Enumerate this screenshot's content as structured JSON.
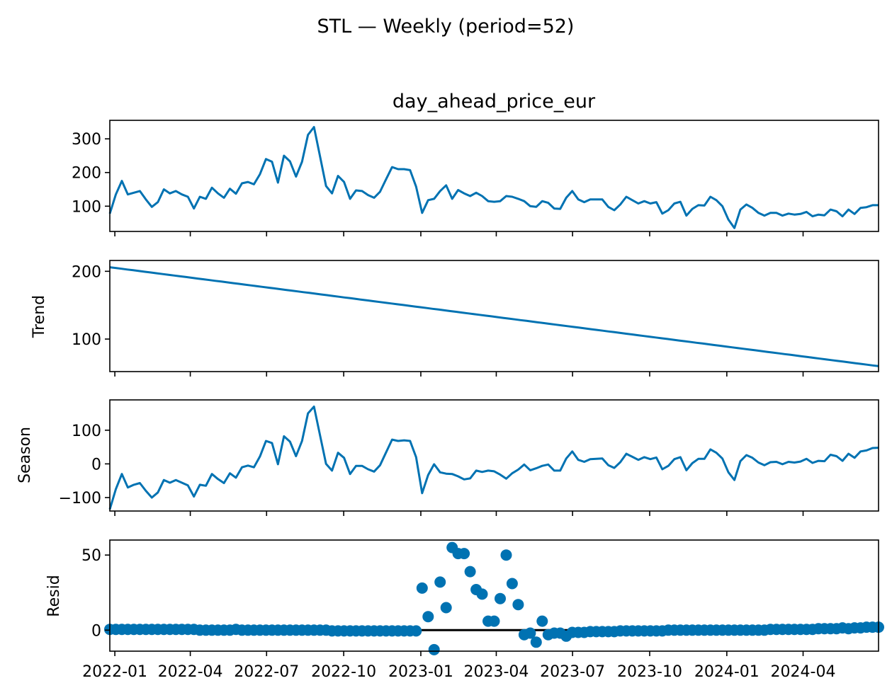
{
  "figure": {
    "suptitle": "STL — Weekly (period=52)"
  },
  "chart_data": [
    {
      "type": "line",
      "title": "day_ahead_price_eur",
      "ylabel": "",
      "x_start": "2021-12-26",
      "x_step_days": 7,
      "x_ticks": [
        "2022-01",
        "2022-04",
        "2022-07",
        "2022-10",
        "2023-01",
        "2023-04",
        "2023-07",
        "2023-10",
        "2024-01",
        "2024-04"
      ],
      "x_tick_dates": [
        "2022-01-01",
        "2022-04-01",
        "2022-07-01",
        "2022-10-01",
        "2023-01-01",
        "2023-04-01",
        "2023-07-01",
        "2023-10-01",
        "2024-01-01",
        "2024-04-01"
      ],
      "xlim": [
        "2021-12-26",
        "2024-06-30"
      ],
      "yticks": [
        100,
        200,
        300
      ],
      "ylim": [
        25,
        355
      ],
      "grid": false,
      "values": [
        78,
        135,
        175,
        135,
        140,
        145,
        120,
        98,
        112,
        150,
        138,
        145,
        135,
        128,
        93,
        128,
        122,
        155,
        138,
        125,
        152,
        137,
        168,
        172,
        165,
        195,
        240,
        232,
        170,
        250,
        233,
        188,
        232,
        312,
        335,
        248,
        160,
        138,
        190,
        172,
        122,
        147,
        145,
        133,
        125,
        143,
        180,
        216,
        210,
        210,
        207,
        158,
        80,
        118,
        122,
        145,
        162,
        122,
        148,
        138,
        130,
        140,
        130,
        115,
        113,
        115,
        130,
        128,
        122,
        115,
        100,
        98,
        115,
        110,
        93,
        92,
        125,
        145,
        120,
        112,
        120,
        120,
        120,
        98,
        88,
        105,
        128,
        118,
        108,
        115,
        108,
        112,
        78,
        88,
        108,
        113,
        72,
        92,
        103,
        102,
        128,
        118,
        100,
        60,
        35,
        90,
        105,
        95,
        80,
        72,
        80,
        80,
        72,
        78,
        75,
        77,
        83,
        70,
        75,
        73,
        90,
        85,
        70,
        90,
        77,
        95,
        97,
        103,
        103
      ]
    },
    {
      "type": "line",
      "title": "",
      "ylabel": "Trend",
      "x_start": "2021-12-26",
      "x_step_days": 7,
      "xlim": [
        "2021-12-26",
        "2024-06-30"
      ],
      "yticks": [
        100,
        200
      ],
      "ylim": [
        52,
        216
      ],
      "values_linear": {
        "start": 206,
        "end": 60
      }
    },
    {
      "type": "line",
      "title": "",
      "ylabel": "Season",
      "x_start": "2021-12-26",
      "x_step_days": 7,
      "xlim": [
        "2021-12-26",
        "2024-06-30"
      ],
      "yticks": [
        -100,
        0,
        100
      ],
      "yticklabels": [
        "−100",
        "0",
        "100"
      ],
      "ylim": [
        -140,
        190
      ],
      "values": [
        -135,
        -75,
        -30,
        -70,
        -62,
        -57,
        -80,
        -100,
        -85,
        -48,
        -56,
        -48,
        -56,
        -64,
        -97,
        -62,
        -65,
        -30,
        -45,
        -57,
        -28,
        -41,
        -10,
        -5,
        -10,
        22,
        68,
        62,
        -1,
        82,
        66,
        23,
        68,
        150,
        170,
        85,
        0,
        -20,
        33,
        18,
        -30,
        -6,
        -6,
        -16,
        -23,
        -4,
        34,
        72,
        68,
        70,
        68,
        20,
        -87,
        -33,
        -1,
        -25,
        -29,
        -30,
        -37,
        -46,
        -43,
        -20,
        -24,
        -20,
        -22,
        -32,
        -44,
        -28,
        -17,
        -2,
        -19,
        -13,
        -6,
        -2,
        -20,
        -20,
        16,
        37,
        12,
        6,
        14,
        15,
        16,
        -4,
        -12,
        5,
        30,
        21,
        12,
        20,
        14,
        19,
        -16,
        -6,
        14,
        20,
        -19,
        2,
        15,
        15,
        43,
        33,
        16,
        -25,
        -48,
        8,
        26,
        18,
        4,
        -4,
        5,
        6,
        -1,
        6,
        4,
        7,
        15,
        3,
        9,
        8,
        27,
        23,
        9,
        30,
        18,
        37,
        40,
        47,
        48
      ]
    },
    {
      "type": "scatter",
      "title": "",
      "ylabel": "Resid",
      "x_start": "2021-12-26",
      "x_step_days": 7,
      "xlim": [
        "2021-12-26",
        "2024-06-30"
      ],
      "yticks": [
        0,
        50
      ],
      "ylim": [
        -14,
        60
      ],
      "zero_line": true,
      "values": [
        0.5,
        0.5,
        0.5,
        0.5,
        0.5,
        0.5,
        0.5,
        0.5,
        0.5,
        0.5,
        0.5,
        0.5,
        0.5,
        0.5,
        0.5,
        0,
        0,
        0,
        0,
        0,
        0,
        0.5,
        0,
        0,
        0,
        0,
        0,
        0,
        0,
        0,
        0,
        0,
        0,
        0,
        0,
        0,
        0,
        -0.5,
        -0.5,
        -0.5,
        -0.5,
        -0.5,
        -0.5,
        -0.5,
        -0.5,
        -0.5,
        -0.5,
        -0.5,
        -0.5,
        -0.5,
        -0.5,
        -0.5,
        28,
        9,
        -13,
        32,
        15,
        55,
        51,
        51,
        39,
        27,
        24,
        6,
        6,
        21,
        50,
        31,
        17,
        -3,
        -2,
        -8,
        6,
        -3,
        -2,
        -2,
        -4,
        -1.5,
        -1.5,
        -1.5,
        -1,
        -1,
        -1,
        -1,
        -1,
        -0.5,
        -0.5,
        -0.5,
        -0.5,
        -0.5,
        -0.5,
        -0.5,
        -0.5,
        0,
        0,
        0,
        0,
        0,
        0,
        0,
        0,
        0,
        0,
        0,
        0,
        0,
        0,
        0,
        0,
        0,
        0.5,
        0.5,
        0.5,
        0.5,
        0.5,
        0.5,
        0.5,
        0.5,
        1,
        1,
        1,
        1,
        1.5,
        1,
        1.5,
        1.5,
        2,
        2,
        2
      ]
    }
  ]
}
